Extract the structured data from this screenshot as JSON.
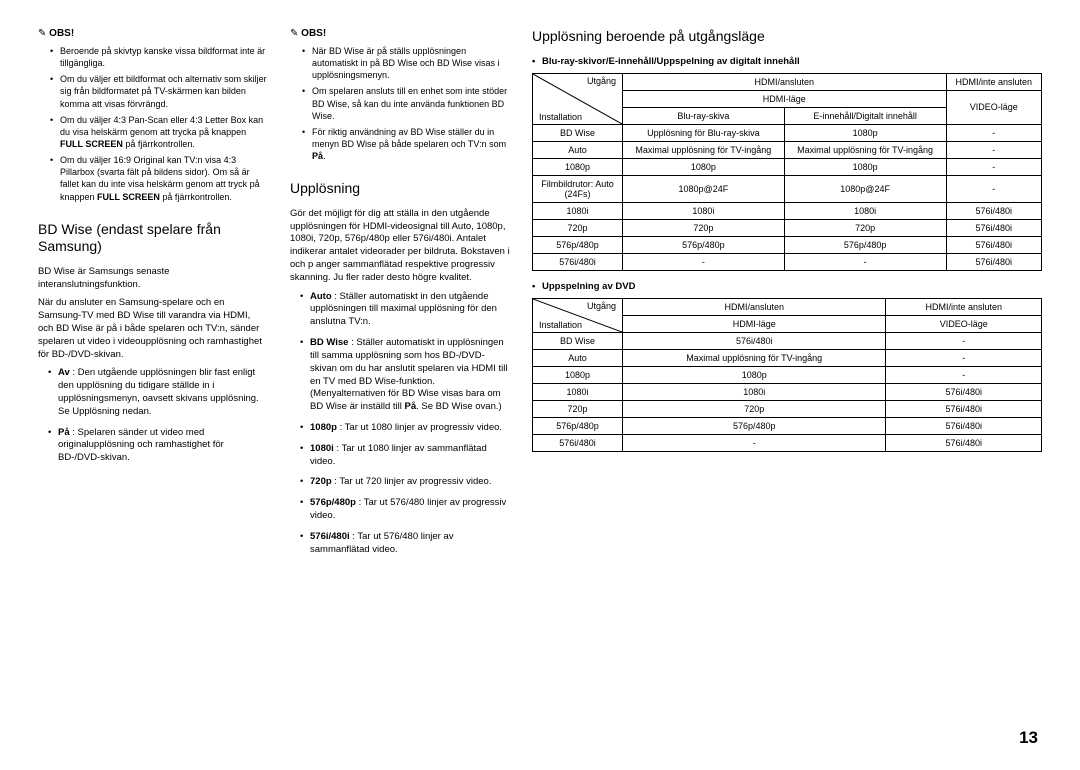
{
  "col1": {
    "obs": "OBS!",
    "obs_items": [
      "Beroende på skivtyp kanske vissa bildformat inte är tillgängliga.",
      "Om du väljer ett bildformat och alternativ som skiljer sig från bildformatet på TV-skärmen kan bilden komma att visas förvrängd.",
      "Om du väljer 4:3 Pan-Scan eller 4:3 Letter Box kan du visa helskärm genom att trycka på knappen FULL SCREEN på fjärrkontrollen.",
      "Om du väljer 16:9 Original kan TV:n visa 4:3 Pillarbox (svarta fält på bildens sidor). Om så är fallet kan du inte visa helskärm genom att tryck på knappen FULL SCREEN på fjärrkontrollen."
    ],
    "h_bdwise": "BD Wise (endast spelare från Samsung)",
    "p1": "BD Wise är Samsungs senaste interanslutningsfunktion.",
    "p2": "När du ansluter en Samsung-spelare och en Samsung-TV med BD Wise till varandra via HDMI, och BD Wise är på i både spelaren och TV:n, sänder spelaren ut video i videoupplösning och ramhastighet för BD-/DVD-skivan.",
    "bullets": [
      {
        "lead": "Av",
        "text": " : Den utgående upplösningen blir fast enligt den upplösning du tidigare ställde in i upplösningsmenyn, oavsett skivans upplösning. Se Upplösning nedan."
      },
      {
        "lead": "På",
        "text": " : Spelaren sänder ut video med originalupplösning och ramhastighet för BD-/DVD-skivan."
      }
    ]
  },
  "col2": {
    "obs": "OBS!",
    "obs_items": [
      "När BD Wise är på ställs upplösningen automatiskt in på BD Wise och BD Wise visas i upplösningsmenyn.",
      "Om spelaren ansluts till en enhet som inte stöder BD Wise, så kan du inte använda funktionen BD Wise.",
      "För riktig användning av BD Wise ställer du in menyn BD Wise på både spelaren och TV:n som På."
    ],
    "h_uppl": "Upplösning",
    "p1": "Gör det möjligt för dig att ställa in den utgående upplösningen för HDMI-videosignal till Auto, 1080p, 1080i, 720p, 576p/480p eller 576i/480i. Antalet indikerar antalet videorader per bildruta. Bokstaven i och p anger sammanflätad respektive progressiv skanning. Ju fler rader desto högre kvalitet.",
    "bullets": [
      {
        "lead": "Auto",
        "text": " : Ställer automatiskt in den utgående upplösningen till maximal upplösning för den anslutna TV:n."
      },
      {
        "lead": "BD Wise",
        "text": " : Ställer automatiskt in upplösningen till samma upplösning som hos BD-/DVD-skivan om du har anslutit spelaren via HDMI till en TV med BD Wise-funktion. (Menyalternativen för BD Wise visas bara om BD Wise är inställd till På. Se BD Wise ovan.)"
      },
      {
        "lead": "1080p",
        "text": " : Tar ut 1080 linjer av progressiv video."
      },
      {
        "lead": "1080i",
        "text": " : Tar ut 1080 linjer av sammanflätad video."
      },
      {
        "lead": "720p",
        "text": " : Tar ut 720 linjer av progressiv video."
      },
      {
        "lead": "576p/480p",
        "text": " : Tar ut 576/480 linjer av progressiv video."
      },
      {
        "lead": "576i/480i",
        "text": " : Tar ut 576/480 linjer av sammanflätad video."
      }
    ]
  },
  "col3": {
    "h": "Upplösning beroende på utgångsläge",
    "t1_title": "Blu-ray-skivor/E-innehåll/Uppspelning av digitalt innehåll",
    "t1": {
      "diag_top": "Utgång",
      "diag_bot": "Installation",
      "h1": "HDMI/ansluten",
      "h2": "HDMI/inte ansluten",
      "h3": "HDMI-läge",
      "h4": "VIDEO-läge",
      "h5": "Blu-ray-skiva",
      "h6": "E-innehåll/Digitalt innehåll",
      "rows": [
        [
          "BD Wise",
          "Upplösning för Blu-ray-skiva",
          "1080p",
          "-"
        ],
        [
          "Auto",
          "Maximal upplösning för TV-ingång",
          "Maximal upplösning för TV-ingång",
          "-"
        ],
        [
          "1080p",
          "1080p",
          "1080p",
          "-"
        ],
        [
          "Filmbildrutor: Auto (24Fs)",
          "1080p@24F",
          "1080p@24F",
          "-"
        ],
        [
          "1080i",
          "1080i",
          "1080i",
          "576i/480i"
        ],
        [
          "720p",
          "720p",
          "720p",
          "576i/480i"
        ],
        [
          "576p/480p",
          "576p/480p",
          "576p/480p",
          "576i/480i"
        ],
        [
          "576i/480i",
          "-",
          "-",
          "576i/480i"
        ]
      ]
    },
    "t2_title": "Uppspelning av DVD",
    "t2": {
      "diag_top": "Utgång",
      "diag_bot": "Installation",
      "h1": "HDMI/ansluten",
      "h2": "HDMI/inte ansluten",
      "h3": "HDMI-läge",
      "h4": "VIDEO-läge",
      "rows": [
        [
          "BD Wise",
          "576i/480i",
          "-"
        ],
        [
          "Auto",
          "Maximal upplösning för TV-ingång",
          "-"
        ],
        [
          "1080p",
          "1080p",
          "-"
        ],
        [
          "1080i",
          "1080i",
          "576i/480i"
        ],
        [
          "720p",
          "720p",
          "576i/480i"
        ],
        [
          "576p/480p",
          "576p/480p",
          "576i/480i"
        ],
        [
          "576i/480i",
          "-",
          "576i/480i"
        ]
      ]
    }
  },
  "page": "13"
}
